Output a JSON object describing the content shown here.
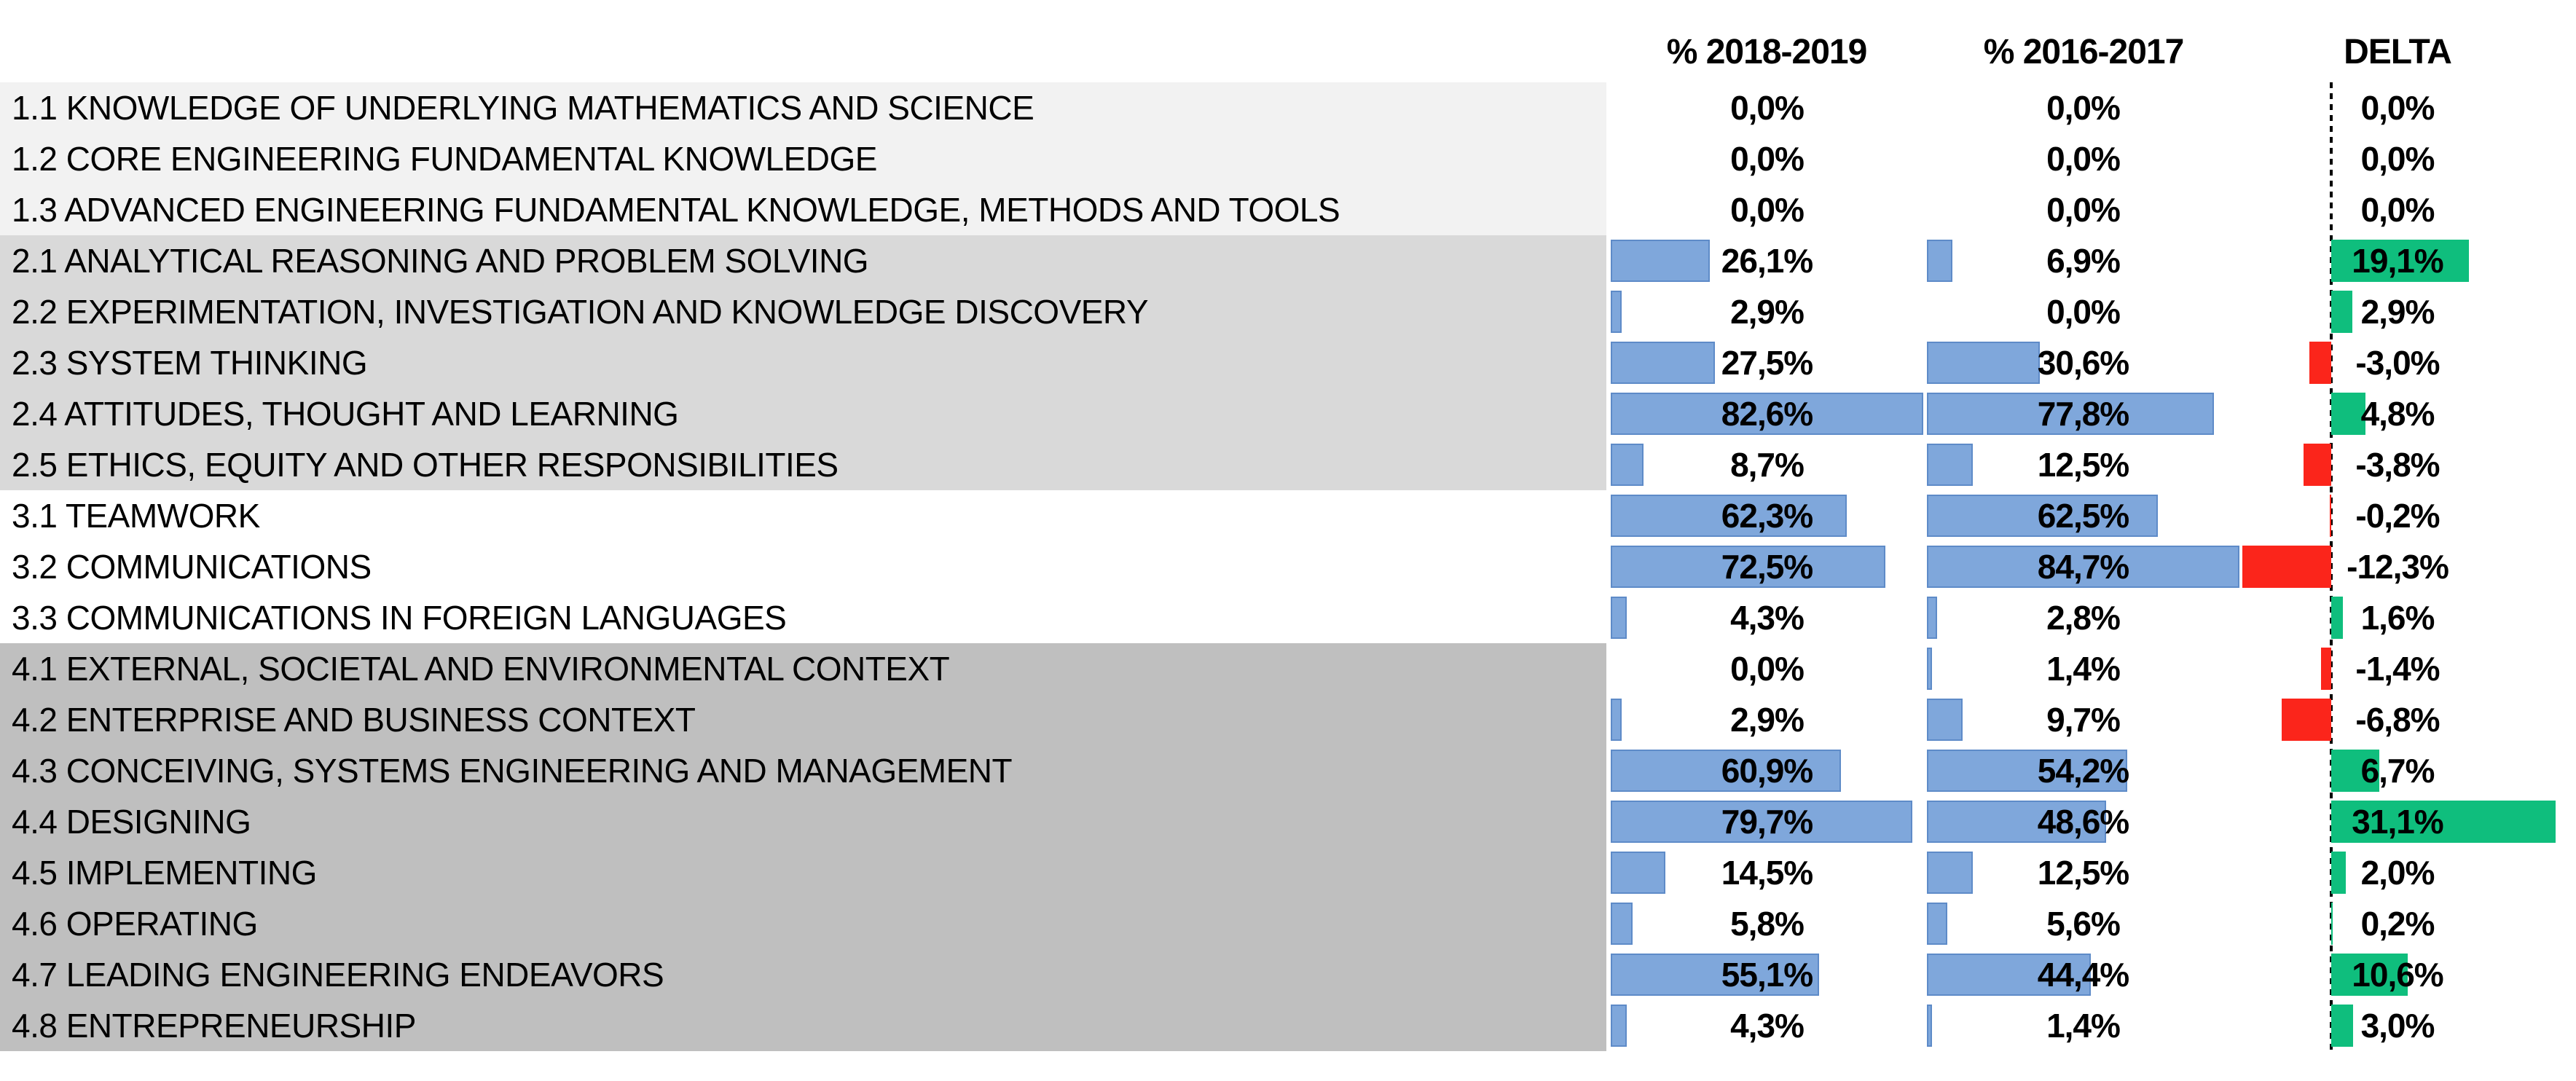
{
  "header": {
    "col_2018_2019": "% 2018-2019",
    "col_2016_2017": "% 2016-2017",
    "delta": "DELTA"
  },
  "colors": {
    "bar_blue": "#7FA7DB",
    "bar_blue_border": "#5E8BC8",
    "delta_positive": "#0FBE7D",
    "delta_negative": "#FB251B",
    "text": "#000000",
    "axis_dash": "#000000",
    "group_backgrounds": {
      "1": "#F2F2F2",
      "2": "#D9D9D9",
      "3": "#FFFFFF",
      "4": "#BFBFBF"
    }
  },
  "chart_data": {
    "type": "bar",
    "orientation": "horizontal",
    "value_format": "percent, 1 decimal, comma separator",
    "bar_scaling": "each column scaled to its max value; delta column has zero axis, green positive, red negative",
    "legend_position": "none",
    "grid": false,
    "categories": [
      "1.1 KNOWLEDGE OF UNDERLYING MATHEMATICS AND SCIENCE",
      "1.2 CORE ENGINEERING FUNDAMENTAL KNOWLEDGE",
      "1.3 ADVANCED ENGINEERING FUNDAMENTAL KNOWLEDGE, METHODS AND TOOLS",
      "2.1 ANALYTICAL REASONING AND PROBLEM SOLVING",
      "2.2 EXPERIMENTATION, INVESTIGATION AND KNOWLEDGE DISCOVERY",
      "2.3 SYSTEM THINKING",
      "2.4 ATTITUDES, THOUGHT AND LEARNING",
      "2.5 ETHICS, EQUITY AND OTHER RESPONSIBILITIES",
      "3.1 TEAMWORK",
      "3.2 COMMUNICATIONS",
      "3.3 COMMUNICATIONS IN FOREIGN LANGUAGES",
      "4.1 EXTERNAL, SOCIETAL AND ENVIRONMENTAL CONTEXT",
      "4.2 ENTERPRISE AND BUSINESS CONTEXT",
      "4.3 CONCEIVING, SYSTEMS ENGINEERING AND MANAGEMENT",
      "4.4 DESIGNING",
      "4.5 IMPLEMENTING",
      "4.6 OPERATING",
      "4.7 LEADING ENGINEERING ENDEAVORS",
      "4.8 ENTREPRENEURSHIP"
    ],
    "groups": [
      1,
      1,
      1,
      2,
      2,
      2,
      2,
      2,
      3,
      3,
      3,
      4,
      4,
      4,
      4,
      4,
      4,
      4,
      4
    ],
    "series": [
      {
        "name": "% 2018-2019",
        "values": [
          0.0,
          0.0,
          0.0,
          26.1,
          2.9,
          27.5,
          82.6,
          8.7,
          62.3,
          72.5,
          4.3,
          0.0,
          2.9,
          60.9,
          79.7,
          14.5,
          5.8,
          55.1,
          4.3
        ]
      },
      {
        "name": "% 2016-2017",
        "values": [
          0.0,
          0.0,
          0.0,
          6.9,
          0.0,
          30.6,
          77.8,
          12.5,
          62.5,
          84.7,
          2.8,
          1.4,
          9.7,
          54.2,
          48.6,
          12.5,
          5.6,
          44.4,
          1.4
        ]
      },
      {
        "name": "DELTA",
        "values": [
          0.0,
          0.0,
          0.0,
          19.1,
          2.9,
          -3.0,
          4.8,
          -3.8,
          -0.2,
          -12.3,
          1.6,
          -1.4,
          -6.8,
          6.7,
          31.1,
          2.0,
          0.2,
          10.6,
          3.0
        ]
      }
    ]
  }
}
